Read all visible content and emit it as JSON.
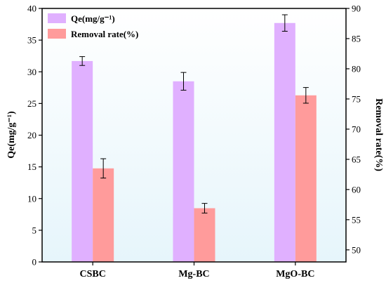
{
  "chart_data": {
    "type": "bar",
    "categories": [
      "CSBC",
      "Mg-BC",
      "MgO-BC"
    ],
    "series": [
      {
        "name": "Qe(mg/g⁻¹)",
        "axis": "left",
        "color": "#e0b0ff",
        "values": [
          31.7,
          28.5,
          37.7
        ],
        "errors": [
          0.7,
          1.4,
          1.3
        ]
      },
      {
        "name": "Removal rate(%)",
        "axis": "right",
        "color": "#ff9b9b",
        "values": [
          63.5,
          56.9,
          75.6
        ],
        "errors": [
          1.6,
          0.8,
          1.3
        ]
      }
    ],
    "ylabel": "Qe(mg/g⁻¹)",
    "ylabel_right": "Removal rate(%)",
    "ylim": [
      0,
      40
    ],
    "ylim_right": [
      48,
      90
    ],
    "yticks": [
      0,
      5,
      10,
      15,
      20,
      25,
      30,
      35,
      40
    ],
    "yticks_right": [
      50,
      55,
      60,
      65,
      70,
      75,
      80,
      85,
      90
    ],
    "background_gradient": [
      "#ffffff",
      "#e6f5fb"
    ],
    "legend_position": "top-left",
    "grid": false
  }
}
